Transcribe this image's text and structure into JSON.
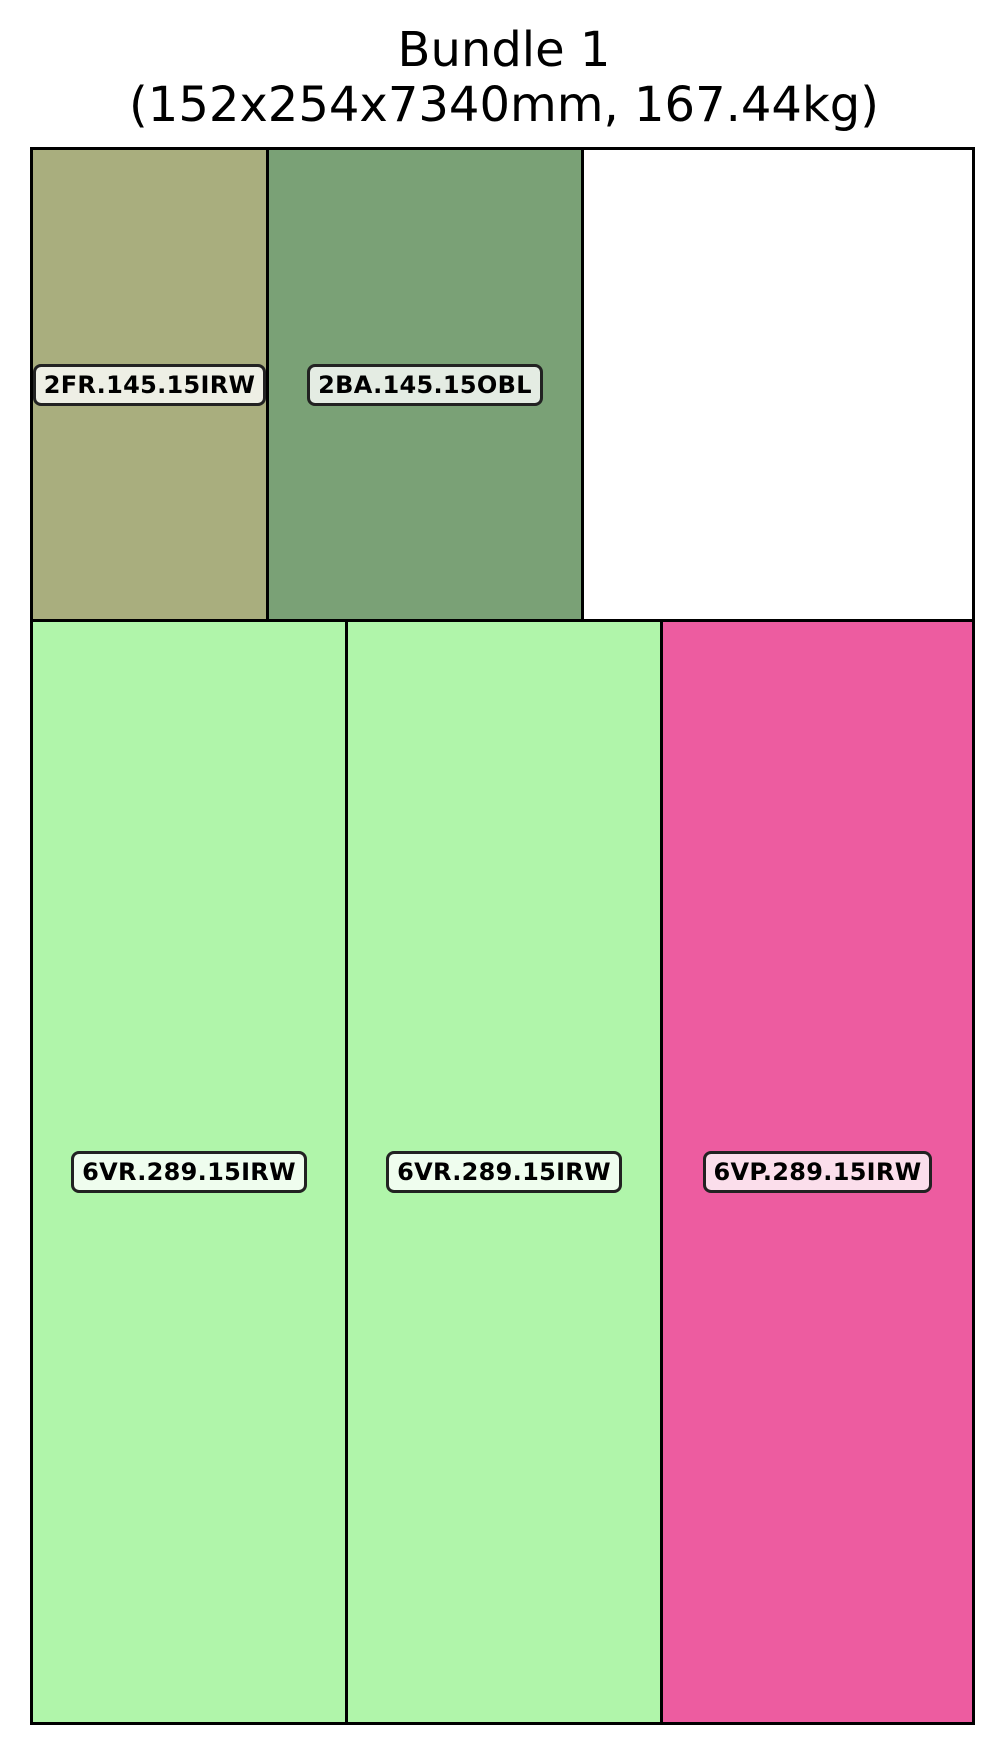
{
  "title": {
    "line1": "Bundle 1",
    "line2": "(152x254x7340mm, 167.44kg)"
  },
  "pieces": [
    {
      "id": "p1",
      "label": "2FR.145.15IRW",
      "fill": "#a9ae7e",
      "tag_bg": "#eeefe5"
    },
    {
      "id": "p2",
      "label": "2BA.145.15OBL",
      "fill": "#7aa176",
      "tag_bg": "#e4ece3"
    },
    {
      "id": "p3",
      "label": "6VR.289.15IRW",
      "fill": "#b0f5aa",
      "tag_bg": "#effdee"
    },
    {
      "id": "p4",
      "label": "6VR.289.15IRW",
      "fill": "#b0f5aa",
      "tag_bg": "#effdee"
    },
    {
      "id": "p5",
      "label": "6VP.289.15IRW",
      "fill": "#ed5ca0",
      "tag_bg": "#fbdeeb"
    }
  ],
  "empty_fill": "#ffffff"
}
